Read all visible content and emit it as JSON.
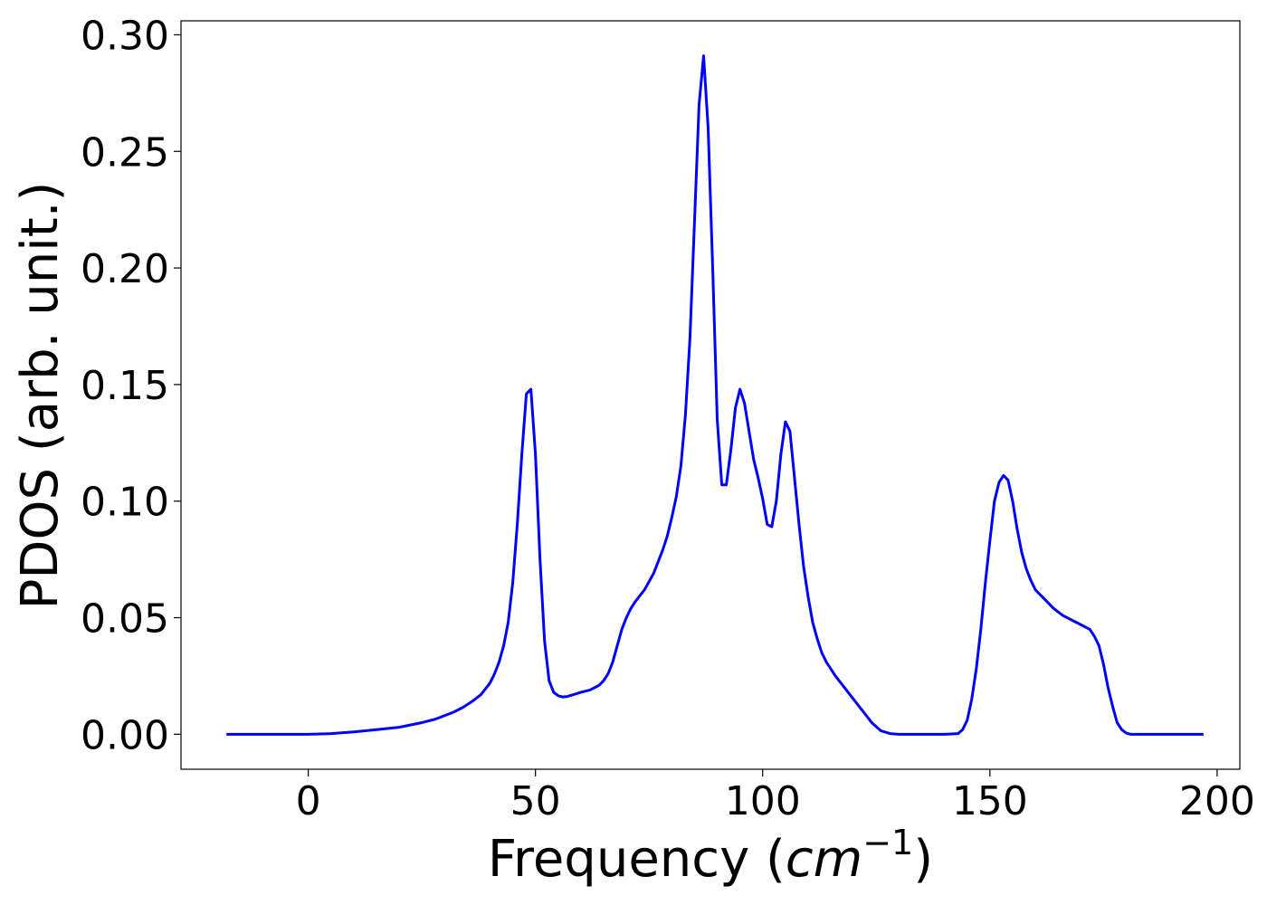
{
  "chart_data": {
    "type": "line",
    "xlabel": "Frequency (cm⁻¹)",
    "xlabel_parts": {
      "prefix": "Frequency (",
      "unit_base": "cm",
      "unit_exp": "−1",
      "suffix": ")"
    },
    "ylabel": "PDOS (arb. unit.)",
    "xlim": [
      -28,
      205
    ],
    "ylim": [
      -0.015,
      0.306
    ],
    "x_ticks": [
      0,
      50,
      100,
      150,
      200
    ],
    "y_ticks": [
      0.0,
      0.05,
      0.1,
      0.15,
      0.2,
      0.25,
      0.3
    ],
    "x_tick_labels": [
      "0",
      "50",
      "100",
      "150",
      "200"
    ],
    "y_tick_labels": [
      "0.00",
      "0.05",
      "0.10",
      "0.15",
      "0.20",
      "0.25",
      "0.30"
    ],
    "grid": false,
    "line_color": "#0000ff",
    "series": [
      {
        "x": [
          -18,
          -10,
          0,
          5,
          10,
          15,
          20,
          25,
          28,
          30,
          32,
          34,
          36,
          38,
          40,
          41,
          42,
          43,
          44,
          45,
          46,
          47,
          48,
          49,
          50,
          51,
          52,
          53,
          54,
          55,
          56,
          57,
          58,
          60,
          62,
          64,
          65,
          66,
          67,
          68,
          69,
          70,
          71,
          72,
          74,
          76,
          78,
          79,
          80,
          81,
          82,
          83,
          84,
          85,
          86,
          87,
          88,
          89,
          90,
          91,
          92,
          93,
          94,
          95,
          96,
          97,
          98,
          99,
          100,
          101,
          102,
          103,
          104,
          105,
          106,
          107,
          108,
          109,
          110,
          111,
          112,
          113,
          114,
          116,
          118,
          120,
          122,
          124,
          126,
          128,
          130,
          135,
          140,
          143,
          144,
          145,
          146,
          147,
          148,
          149,
          150,
          151,
          152,
          153,
          154,
          155,
          156,
          157,
          158,
          159,
          160,
          162,
          164,
          166,
          168,
          170,
          172,
          173,
          174,
          175,
          176,
          177,
          178,
          179,
          180,
          181,
          182,
          183,
          185,
          190,
          197
        ],
        "y": [
          0,
          0,
          0,
          0.0003,
          0.001,
          0.002,
          0.003,
          0.005,
          0.0065,
          0.008,
          0.0095,
          0.0115,
          0.014,
          0.017,
          0.022,
          0.026,
          0.031,
          0.038,
          0.048,
          0.065,
          0.09,
          0.12,
          0.146,
          0.148,
          0.12,
          0.075,
          0.04,
          0.023,
          0.018,
          0.0165,
          0.016,
          0.0162,
          0.0168,
          0.018,
          0.019,
          0.021,
          0.023,
          0.026,
          0.031,
          0.038,
          0.045,
          0.05,
          0.054,
          0.057,
          0.062,
          0.069,
          0.079,
          0.085,
          0.093,
          0.102,
          0.115,
          0.137,
          0.17,
          0.22,
          0.27,
          0.291,
          0.26,
          0.2,
          0.135,
          0.107,
          0.107,
          0.122,
          0.14,
          0.148,
          0.142,
          0.13,
          0.118,
          0.11,
          0.101,
          0.09,
          0.089,
          0.1,
          0.12,
          0.134,
          0.13,
          0.11,
          0.09,
          0.072,
          0.059,
          0.048,
          0.041,
          0.035,
          0.031,
          0.025,
          0.02,
          0.015,
          0.01,
          0.005,
          0.0015,
          0.0003,
          0,
          0,
          0,
          0.0003,
          0.002,
          0.006,
          0.015,
          0.028,
          0.045,
          0.065,
          0.083,
          0.1,
          0.108,
          0.111,
          0.109,
          0.1,
          0.088,
          0.078,
          0.071,
          0.066,
          0.062,
          0.058,
          0.054,
          0.051,
          0.049,
          0.047,
          0.045,
          0.042,
          0.038,
          0.03,
          0.02,
          0.012,
          0.005,
          0.002,
          0.0005,
          0,
          0,
          0,
          0,
          0,
          0
        ]
      }
    ]
  }
}
